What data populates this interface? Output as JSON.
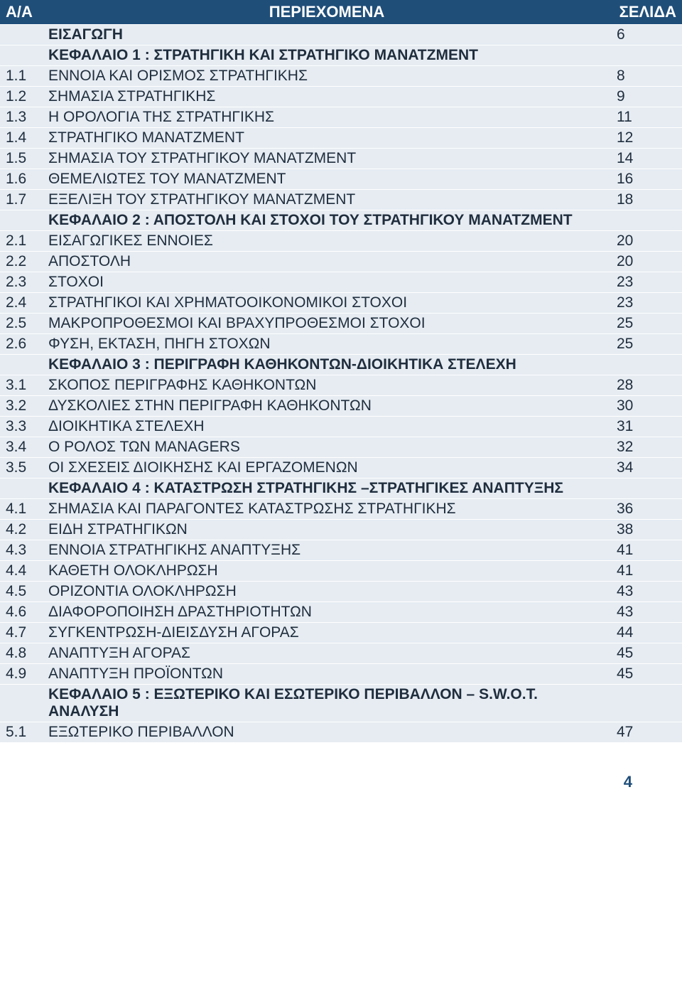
{
  "colors": {
    "header_bg": "#1f4e79",
    "header_fg": "#ffffff",
    "row_bg": "#e6ecf2",
    "row_fg": "#1f2d3d",
    "pagenum_color": "#1f4e79",
    "row_border": "#ffffff"
  },
  "font_sizes": {
    "header": 22,
    "body": 21,
    "pagenum": 22
  },
  "headers": {
    "num": "Α/Α",
    "title": "ΠΕΡΙΕΧΟΜΕΝΑ",
    "page": "ΣΕΛΙΔΑ"
  },
  "page_number": "4",
  "rows": [
    {
      "num": "",
      "title": "ΕΙΣΑΓΩΓΗ",
      "page": "6",
      "bold": true
    },
    {
      "num": "",
      "title": "ΚΕΦΑΛΑΙΟ 1 : ΣΤΡΑΤΗΓΙΚΗ ΚΑΙ ΣΤΡΑΤΗΓΙΚΟ ΜΑΝΑΤΖΜΕΝΤ",
      "page": "",
      "bold": true
    },
    {
      "num": "1.1",
      "title": "ΕΝΝΟΙΑ ΚΑΙ ΟΡΙΣΜΟΣ ΣΤΡΑΤΗΓΙΚΗΣ",
      "page": "8"
    },
    {
      "num": "1.2",
      "title": "ΣΗΜΑΣΙΑ ΣΤΡΑΤΗΓΙΚΗΣ",
      "page": "9"
    },
    {
      "num": "1.3",
      "title": "Η ΟΡΟΛΟΓΙΑ ΤΗΣ ΣΤΡΑΤΗΓΙΚΗΣ",
      "page": "11"
    },
    {
      "num": "1.4",
      "title": "ΣΤΡΑΤΗΓΙΚΟ ΜΑΝΑΤΖΜΕΝΤ",
      "page": "12"
    },
    {
      "num": "1.5",
      "title": "ΣΗΜΑΣΙΑ ΤΟΥ ΣΤΡΑΤΗΓΙΚΟΥ ΜΑΝΑΤΖΜΕΝΤ",
      "page": "14"
    },
    {
      "num": "1.6",
      "title": "ΘΕΜΕΛΙΩΤΕΣ ΤΟΥ ΜΑΝΑΤΖΜΕΝΤ",
      "page": "16"
    },
    {
      "num": "1.7",
      "title": "ΕΞΕΛΙΞΗ ΤΟΥ ΣΤΡΑΤΗΓΙΚΟΥ ΜΑΝΑΤΖΜΕΝΤ",
      "page": "18"
    },
    {
      "num": "",
      "title": "ΚΕΦΑΛΑΙΟ 2 : ΑΠΟΣΤΟΛΗ ΚΑΙ ΣΤΟΧΟΙ ΤΟΥ ΣΤΡΑΤΗΓΙΚΟΥ ΜΑΝΑΤΖΜΕΝΤ",
      "page": "",
      "bold": true
    },
    {
      "num": "2.1",
      "title": "ΕΙΣΑΓΩΓΙΚΕΣ ΕΝΝΟΙΕΣ",
      "page": "20"
    },
    {
      "num": "2.2",
      "title": "ΑΠΟΣΤΟΛΗ",
      "page": "20"
    },
    {
      "num": "2.3",
      "title": "ΣΤΟΧΟΙ",
      "page": "23"
    },
    {
      "num": "2.4",
      "title": "ΣΤΡΑΤΗΓΙΚΟΙ ΚΑΙ ΧΡΗΜΑΤΟΟΙΚΟΝΟΜΙΚΟΙ ΣΤΟΧΟΙ",
      "page": "23"
    },
    {
      "num": "2.5",
      "title": "ΜΑΚΡΟΠΡΟΘΕΣΜΟΙ ΚΑΙ ΒΡΑΧΥΠΡΟΘΕΣΜΟΙ ΣΤΟΧΟΙ",
      "page": "25"
    },
    {
      "num": "2.6",
      "title": "ΦΥΣΗ, ΕΚΤΑΣΗ, ΠΗΓΗ ΣΤΟΧΩΝ",
      "page": "25"
    },
    {
      "num": "",
      "title": "ΚΕΦΑΛΑΙΟ 3 : ΠΕΡΙΓΡΑΦΗ ΚΑΘΗΚΟΝΤΩΝ-ΔΙΟΙΚΗΤΙΚΑ ΣΤΕΛΕΧΗ",
      "page": "",
      "bold": true
    },
    {
      "num": "3.1",
      "title": "ΣΚΟΠΟΣ ΠΕΡΙΓΡΑΦΗΣ ΚΑΘΗΚΟΝΤΩΝ",
      "page": "28"
    },
    {
      "num": "3.2",
      "title": "ΔΥΣΚΟΛΙΕΣ ΣΤΗΝ ΠΕΡΙΓΡΑΦΗ ΚΑΘΗΚΟΝΤΩΝ",
      "page": "30"
    },
    {
      "num": "3.3",
      "title": "ΔΙΟΙΚΗΤΙΚΑ ΣΤΕΛΕΧΗ",
      "page": "31"
    },
    {
      "num": "3.4",
      "title": "Ο ΡΟΛΟΣ ΤΩΝ MANAGERS",
      "page": "32"
    },
    {
      "num": "3.5",
      "title": "ΟΙ ΣΧΕΣΕΙΣ ΔΙΟΙΚΗΣΗΣ ΚΑΙ ΕΡΓΑΖΟΜΕΝΩΝ",
      "page": "34"
    },
    {
      "num": "",
      "title": "ΚΕΦΑΛΑΙΟ 4 : ΚΑΤΑΣΤΡΩΣΗ ΣΤΡΑΤΗΓΙΚΗΣ –ΣΤΡΑΤΗΓΙΚΕΣ ΑΝΑΠΤΥΞΗΣ",
      "page": "",
      "bold": true
    },
    {
      "num": "4.1",
      "title": "ΣΗΜΑΣΙΑ ΚΑΙ ΠΑΡΑΓΟΝΤΕΣ ΚΑΤΑΣΤΡΩΣΗΣ ΣΤΡΑΤΗΓΙΚΗΣ",
      "page": "36"
    },
    {
      "num": "4.2",
      "title": "ΕΙΔΗ ΣΤΡΑΤΗΓΙΚΩΝ",
      "page": "38"
    },
    {
      "num": "4.3",
      "title": "ΕΝΝΟΙΑ ΣΤΡΑΤΗΓΙΚΗΣ ΑΝΑΠΤΥΞΗΣ",
      "page": "41"
    },
    {
      "num": "4.4",
      "title": "ΚΑΘΕΤΗ ΟΛΟΚΛΗΡΩΣΗ",
      "page": "41"
    },
    {
      "num": "4.5",
      "title": "ΟΡΙΖΟΝΤΙΑ ΟΛΟΚΛΗΡΩΣΗ",
      "page": "43"
    },
    {
      "num": "4.6",
      "title": "ΔΙΑΦΟΡΟΠΟΙΗΣΗ ΔΡΑΣΤΗΡΙΟΤΗΤΩΝ",
      "page": "43"
    },
    {
      "num": "4.7",
      "title": "ΣΥΓΚΕΝΤΡΩΣΗ-ΔΙΕΙΣΔΥΣΗ ΑΓΟΡΑΣ",
      "page": "44"
    },
    {
      "num": "4.8",
      "title": "ΑΝΑΠΤΥΞΗ ΑΓΟΡΑΣ",
      "page": "45"
    },
    {
      "num": "4.9",
      "title": "ΑΝΑΠΤΥΞΗ ΠΡΟΪΟΝΤΩΝ",
      "page": "45"
    },
    {
      "num": "",
      "title": "ΚΕΦΑΛΑΙΟ 5 : ΕΞΩΤΕΡΙΚΟ ΚΑΙ ΕΣΩΤΕΡΙΚΟ ΠΕΡΙΒΑΛΛΟΝ – S.W.O.T. ΑΝΑΛΥΣΗ",
      "page": "",
      "bold": true
    },
    {
      "num": "5.1",
      "title": "ΕΞΩΤΕΡΙΚΟ ΠΕΡΙΒΑΛΛΟΝ",
      "page": "47"
    }
  ]
}
